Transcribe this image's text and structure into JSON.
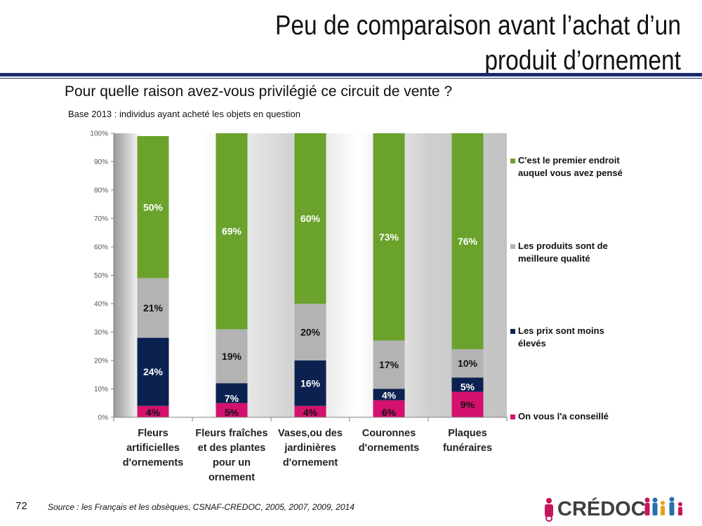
{
  "slide": {
    "title_line1": "Peu de comparaison avant l’achat d’un",
    "title_line2": "produit d’ornement",
    "question": "Pour quelle raison avez-vous privilégié ce circuit de vente ?",
    "base_note": "Base 2013 : individus ayant acheté les objets en question",
    "page_number": "72",
    "source": "Source : les Français et les obsèques, CSNAF-CREDOC, 2005, 2007, 2009, 2014",
    "logo_text": "CRÉDOC"
  },
  "chart_data": {
    "type": "bar",
    "stacked": true,
    "categories": [
      [
        "Fleurs",
        "artificielles",
        "d'ornements"
      ],
      [
        "Fleurs fraîches",
        "et des plantes",
        "pour un",
        "ornement"
      ],
      [
        "Vases,ou des",
        "jardinières",
        "d'ornement"
      ],
      [
        "Couronnes",
        "d'ornements"
      ],
      [
        "Plaques",
        "funéraires"
      ]
    ],
    "series": [
      {
        "name": "On vous l'a conseillé",
        "color": "#d4116e",
        "values": [
          4,
          5,
          4,
          6,
          9
        ],
        "labels": [
          "4%",
          "5%",
          "4%",
          "6%",
          "9%"
        ]
      },
      {
        "name": "Les prix sont moins élevés",
        "color": "#0b2150",
        "values": [
          24,
          7,
          16,
          4,
          5
        ],
        "labels": [
          "24%",
          "7%",
          "16%",
          "4%",
          "5%"
        ]
      },
      {
        "name": "Les produits sont de meilleure qualité",
        "color": "#b3b3b3",
        "values": [
          21,
          19,
          20,
          17,
          10
        ],
        "labels": [
          "21%",
          "19%",
          "20%",
          "17%",
          "10%"
        ]
      },
      {
        "name": "C'est le premier endroit auquel vous avez pensé",
        "color": "#6aa22c",
        "values": [
          50,
          69,
          60,
          73,
          76
        ],
        "labels": [
          "50%",
          "69%",
          "60%",
          "73%",
          "76%"
        ]
      }
    ],
    "legend": [
      {
        "line1": "C'est le premier endroit",
        "line2": "auquel vous avez pensé",
        "color": "#6aa22c"
      },
      {
        "line1": "Les produits sont de",
        "line2": "meilleure qualité",
        "color": "#b3b3b3"
      },
      {
        "line1": "Les prix sont moins",
        "line2": "élevés",
        "color": "#0b2150"
      },
      {
        "line1": "On vous l'a conseillé",
        "line2": "",
        "color": "#d4116e"
      }
    ],
    "legend_position": "right",
    "yticks": [
      "0%",
      "10%",
      "20%",
      "30%",
      "40%",
      "50%",
      "60%",
      "70%",
      "80%",
      "90%",
      "100%"
    ],
    "ylim": [
      0,
      100
    ],
    "grid": false
  }
}
